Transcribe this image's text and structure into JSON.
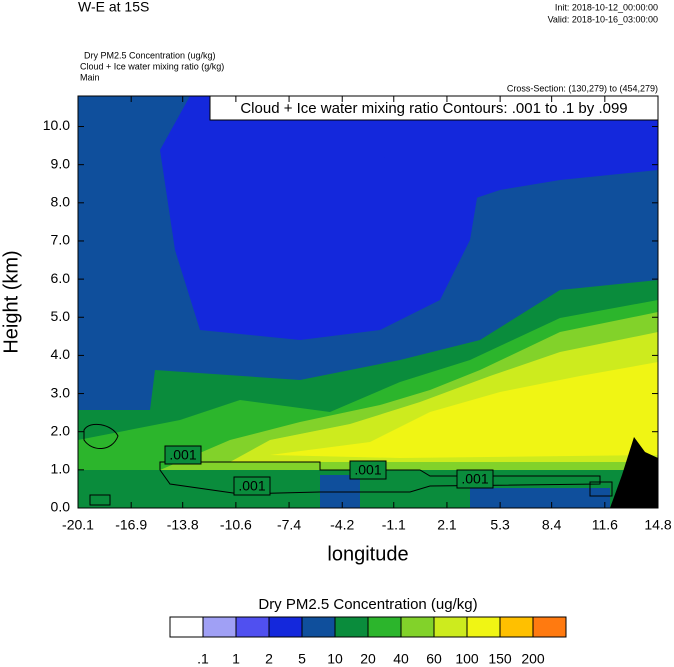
{
  "chart_data": {
    "type": "contour",
    "title": "W-E at 15S",
    "init": "Init: 2018-10-12_00:00:00",
    "valid": "Valid: 2018-10-16_03:00:00",
    "fields": [
      "Dry PM2.5 Concentration   (ug/kg)",
      "Cloud + Ice water mixing ratio   (g/kg)",
      "Main"
    ],
    "cross_section": "Cross-Section: (130,279) to (454,279)",
    "contour_info": "Cloud + Ice water mixing ratio Contours: .001 to .1 by .099",
    "contour_labels": [
      ".001",
      ".001",
      ".001",
      ".001"
    ],
    "xlabel": "longitude",
    "ylabel": "Height (km)",
    "xlim": [
      -20.1,
      14.8
    ],
    "xticks": [
      -20.1,
      -16.9,
      -13.8,
      -10.6,
      -7.4,
      -4.2,
      -1.1,
      2.1,
      5.3,
      8.4,
      11.6,
      14.8
    ],
    "ylim": [
      0,
      10.8
    ],
    "yticks": [
      {
        "value": 0,
        "label": "0.0"
      },
      {
        "value": 1,
        "label": "1.0"
      },
      {
        "value": 2,
        "label": "2.0"
      },
      {
        "value": 3,
        "label": "3.0"
      },
      {
        "value": 4,
        "label": "4.0"
      },
      {
        "value": 5,
        "label": "5.0"
      },
      {
        "value": 6,
        "label": "6.0"
      },
      {
        "value": 7,
        "label": "7.0"
      },
      {
        "value": 8,
        "label": "8.0"
      },
      {
        "value": 9,
        "label": "9.0"
      },
      {
        "value": 10,
        "label": "10.0"
      }
    ],
    "colorbar_title": "Dry PM2.5 Concentration  (ug/kg)",
    "levels": [
      {
        "value": 0.1,
        "label": ".1"
      },
      1,
      2,
      5,
      10,
      20,
      40,
      60,
      100,
      150,
      200
    ],
    "colors": [
      "#ffffff",
      "#a0a0f5",
      "#5050f0",
      "#1428dc",
      "#0f4f9c",
      "#0a8c3c",
      "#2cb52c",
      "#82d22a",
      "#cdeb1e",
      "#f0f514",
      "#ffc000",
      "#ff7a10",
      "#ff1e1e"
    ]
  }
}
